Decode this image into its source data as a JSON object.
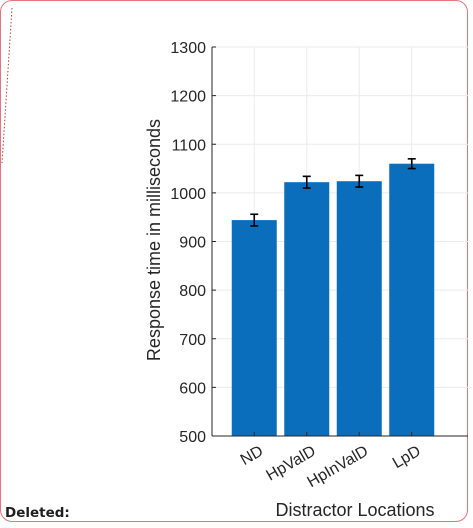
{
  "comment": {
    "label": "Deleted:"
  },
  "colors": {
    "bar": "#0a6ebd",
    "frame": "#e8737a",
    "axis": "#262626",
    "grid": "#ebebeb"
  },
  "chart_data": {
    "type": "bar",
    "categories": [
      "ND",
      "HpValD",
      "HpInValD",
      "LpD"
    ],
    "values": [
      944,
      1022,
      1024,
      1060
    ],
    "errors": [
      12,
      12,
      12,
      10
    ],
    "xlabel": "Distractor Locations",
    "ylabel": "Response time in milliseconds",
    "ylim": [
      500,
      1300
    ],
    "yticks": [
      500,
      600,
      700,
      800,
      900,
      1000,
      1100,
      1200,
      1300
    ],
    "grid": true,
    "error_bars": true,
    "xtick_rotation_deg": -30
  }
}
